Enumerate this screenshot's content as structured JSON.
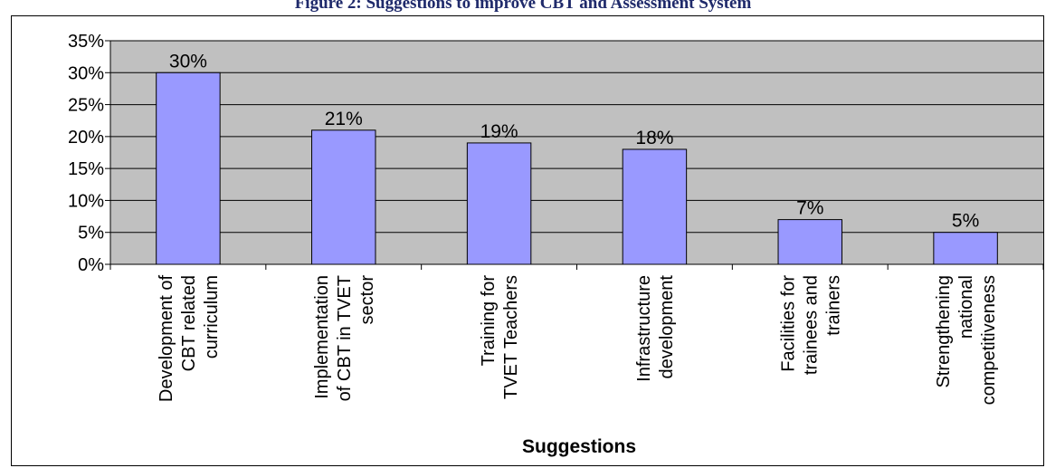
{
  "chart_data": {
    "type": "bar",
    "title": "Figure 2: Suggestions to improve CBT and Assessment System",
    "xlabel": "Suggestions",
    "ylabel": "",
    "categories": [
      [
        "Development of",
        "CBT related",
        "curriculum"
      ],
      [
        "Implementation",
        "of CBT in TVET",
        "sector"
      ],
      [
        "Training for",
        "TVET Teachers"
      ],
      [
        "Infrastructure",
        "development"
      ],
      [
        "Facilities for",
        "trainees and",
        "trainers"
      ],
      [
        "Strengthening",
        "national",
        "competitiveness"
      ]
    ],
    "values": [
      30,
      21,
      19,
      18,
      7,
      5
    ],
    "data_labels": [
      "30%",
      "21%",
      "19%",
      "18%",
      "7%",
      "5%"
    ],
    "ylim": [
      0,
      35
    ],
    "yticks": [
      "0%",
      "5%",
      "10%",
      "15%",
      "20%",
      "25%",
      "30%",
      "35%"
    ],
    "grid": true,
    "legend": "none",
    "colors": {
      "plot_bg": "#c0c0c0",
      "bar": "#9999ff",
      "title": "#1f2a6b"
    }
  }
}
